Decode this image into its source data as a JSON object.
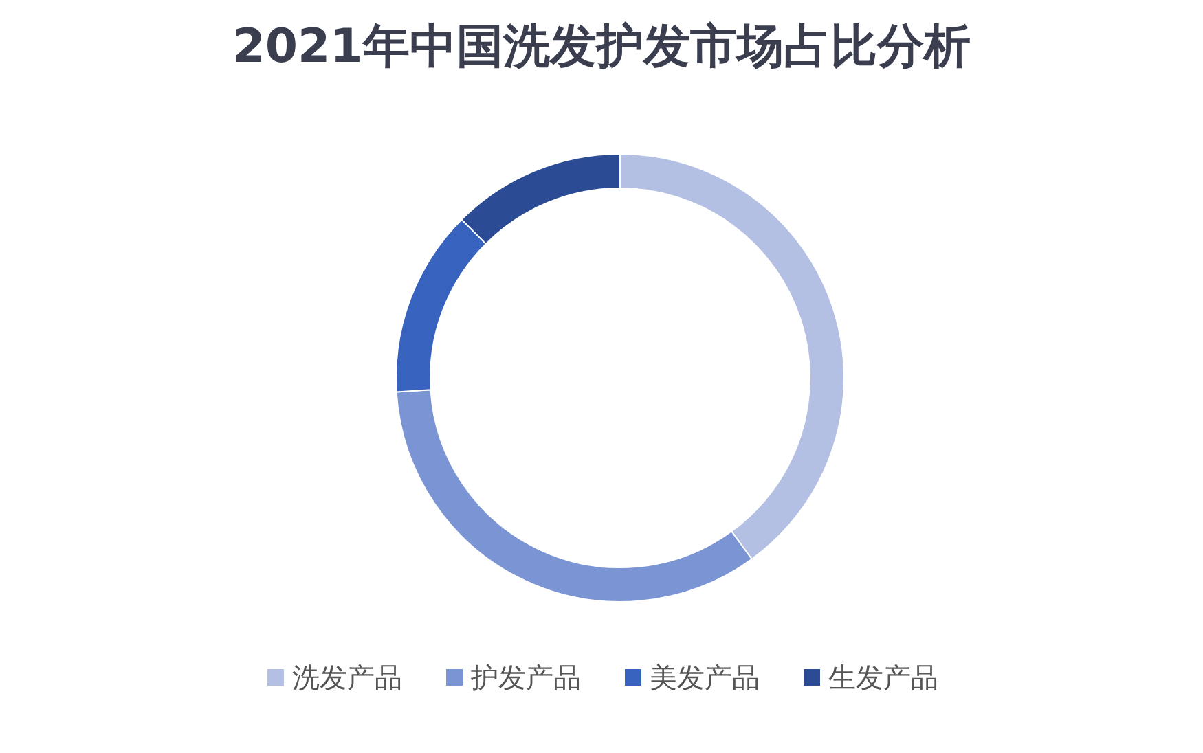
{
  "chart_data": {
    "type": "donut",
    "title": "2021年中国洗发护发市场占比分析",
    "categories": [
      "洗发产品",
      "护发产品",
      "美发产品",
      "生发产品"
    ],
    "values": [
      40,
      34,
      13.5,
      12.5
    ],
    "colors": [
      "#b3bfe3",
      "#7b94d4",
      "#3763bf",
      "#2b4b95"
    ],
    "legend": "bottom"
  }
}
